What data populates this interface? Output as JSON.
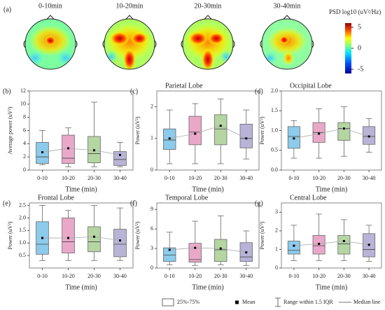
{
  "figure": {
    "panel": "(a)",
    "topomaps": [
      {
        "title": "0-10min"
      },
      {
        "title": "10-20min"
      },
      {
        "title": "20-30min"
      },
      {
        "title": "30-40min"
      }
    ],
    "colorbar": {
      "label": "PSD log10 (uV²/Hz)",
      "lim": [
        -6,
        6
      ],
      "ticks": [
        5,
        0,
        -5
      ]
    },
    "legend": [
      "25%-75%",
      "Mean",
      "Range within 1.5 IQR",
      "Median line"
    ]
  },
  "chart_data": [
    {
      "type": "box",
      "panel": "(b)",
      "ylabel": "Average power (uV²)",
      "xlabel": "Time (min)",
      "categories": [
        "0-10",
        "10-20",
        "20-30",
        "30-40"
      ],
      "colors": [
        "#8ccbeb",
        "#eaa8c9",
        "#b5d6a3",
        "#b8b4d8"
      ],
      "ylim": [
        0,
        12
      ],
      "yticks": [
        0,
        2,
        4,
        6,
        8,
        10,
        12
      ],
      "whisker_low": [
        0.8,
        0.5,
        0.5,
        0.5
      ],
      "q1": [
        1.0,
        1.0,
        1.1,
        0.7
      ],
      "median": [
        2.0,
        1.8,
        2.5,
        1.6
      ],
      "q3": [
        4.2,
        5.3,
        5.1,
        2.8
      ],
      "whisker_high": [
        6.0,
        6.4,
        10.3,
        4.2
      ],
      "mean": [
        2.7,
        3.3,
        3.0,
        2.3
      ]
    },
    {
      "type": "box",
      "panel": "(c)",
      "title": "Parietal Lobe",
      "ylabel": "Power (uV²)",
      "xlabel": "Time (min)",
      "categories": [
        "0-10",
        "10-20",
        "20-30",
        "30-40"
      ],
      "colors": [
        "#8ccbeb",
        "#eaa8c9",
        "#b5d6a3",
        "#b8b4d8"
      ],
      "ylim": [
        0,
        2.5
      ],
      "yticks": [
        0,
        1,
        2
      ],
      "whisker_low": [
        0.2,
        0.2,
        0.2,
        0.35
      ],
      "q1": [
        0.65,
        0.8,
        0.8,
        0.7
      ],
      "median": [
        0.95,
        1.2,
        1.3,
        1.0
      ],
      "q3": [
        1.3,
        1.7,
        1.75,
        1.45
      ],
      "whisker_high": [
        1.9,
        2.1,
        2.25,
        1.9
      ],
      "mean": [
        1.0,
        1.15,
        1.4,
        1.0
      ]
    },
    {
      "type": "box",
      "panel": "(d)",
      "title": "Occipital Lobe",
      "ylabel": "Power (uV²)",
      "xlabel": "Time (min)",
      "categories": [
        "0-10",
        "10-20",
        "20-30",
        "30-40"
      ],
      "colors": [
        "#8ccbeb",
        "#eaa8c9",
        "#b5d6a3",
        "#b8b4d8"
      ],
      "ylim": [
        0,
        2.0
      ],
      "yticks": [
        {
          "value": 0,
          "label": "0.0"
        },
        0.5,
        {
          "value": 1,
          "label": "1.0"
        },
        1.5,
        {
          "value": 2,
          "label": "2.0"
        }
      ],
      "whisker_low": [
        0.3,
        0.3,
        0.35,
        0.45
      ],
      "q1": [
        0.55,
        0.7,
        0.75,
        0.65
      ],
      "median": [
        0.85,
        0.95,
        1.05,
        0.85
      ],
      "q3": [
        1.1,
        1.2,
        1.2,
        1.1
      ],
      "whisker_high": [
        1.25,
        1.55,
        1.6,
        1.3
      ],
      "mean": [
        0.8,
        0.92,
        1.05,
        0.85
      ]
    },
    {
      "type": "box",
      "panel": "(e)",
      "title": "Frontal Lobe",
      "ylabel": "Power (uV²)",
      "xlabel": "Time (min)",
      "categories": [
        "0-10",
        "10-20",
        "20-30",
        "30-40"
      ],
      "colors": [
        "#8ccbeb",
        "#eaa8c9",
        "#b5d6a3",
        "#b8b4d8"
      ],
      "ylim": [
        0,
        2.6
      ],
      "yticks": [
        0.5,
        {
          "value": 1,
          "label": "1.0"
        },
        1.5,
        {
          "value": 2,
          "label": "2.0"
        },
        2.5
      ],
      "whisker_low": [
        0.3,
        0.3,
        0.3,
        0.3
      ],
      "q1": [
        0.55,
        0.6,
        0.65,
        0.45
      ],
      "median": [
        0.95,
        1.05,
        1.05,
        0.95
      ],
      "q3": [
        1.85,
        2.0,
        1.65,
        1.55
      ],
      "whisker_high": [
        2.5,
        2.3,
        2.5,
        2.4
      ],
      "mean": [
        1.2,
        1.2,
        1.25,
        1.1
      ]
    },
    {
      "type": "box",
      "panel": "(f)",
      "title": "Temporal Lobe",
      "ylabel": "Power (uV²)",
      "xlabel": "Time (min)",
      "categories": [
        "0-10",
        "10-20",
        "20-30",
        "30-40"
      ],
      "colors": [
        "#8ccbeb",
        "#eaa8c9",
        "#b5d6a3",
        "#b8b4d8"
      ],
      "ylim": [
        0,
        10
      ],
      "yticks": [
        0,
        3,
        6,
        9
      ],
      "whisker_low": [
        0.5,
        0.4,
        0.5,
        0.4
      ],
      "q1": [
        1.0,
        0.9,
        1.0,
        1.0
      ],
      "median": [
        2.0,
        1.3,
        2.8,
        1.7
      ],
      "q3": [
        3.1,
        3.8,
        4.4,
        3.9
      ],
      "whisker_high": [
        5.5,
        7.2,
        8.0,
        5.7
      ],
      "mean": [
        2.8,
        3.1,
        3.0,
        2.4
      ]
    },
    {
      "type": "box",
      "panel": "(g)",
      "title": "Central Lobe",
      "ylabel": "Power (uV²)",
      "xlabel": "Time (min)",
      "categories": [
        "0-10",
        "10-20",
        "20-30",
        "30-40"
      ],
      "colors": [
        "#8ccbeb",
        "#eaa8c9",
        "#b5d6a3",
        "#b8b4d8"
      ],
      "ylim": [
        0,
        3.5
      ],
      "yticks": [
        0,
        1,
        2,
        3
      ],
      "whisker_low": [
        0.4,
        0.4,
        0.4,
        0.35
      ],
      "q1": [
        0.75,
        0.75,
        0.75,
        0.6
      ],
      "median": [
        0.95,
        1.2,
        1.3,
        1.0
      ],
      "q3": [
        1.45,
        1.75,
        1.75,
        1.85
      ],
      "whisker_high": [
        2.3,
        2.9,
        2.6,
        2.3
      ],
      "mean": [
        1.2,
        1.3,
        1.45,
        1.25
      ]
    }
  ]
}
